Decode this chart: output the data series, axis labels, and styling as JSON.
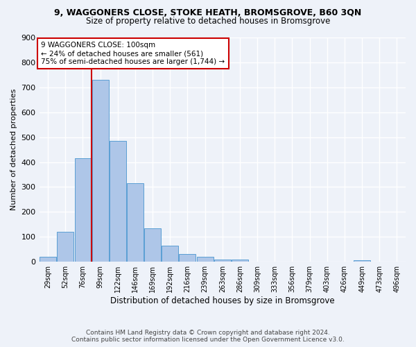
{
  "title_line1": "9, WAGGONERS CLOSE, STOKE HEATH, BROMSGROVE, B60 3QN",
  "title_line2": "Size of property relative to detached houses in Bromsgrove",
  "xlabel": "Distribution of detached houses by size in Bromsgrove",
  "ylabel": "Number of detached properties",
  "categories": [
    "29sqm",
    "52sqm",
    "76sqm",
    "99sqm",
    "122sqm",
    "146sqm",
    "169sqm",
    "192sqm",
    "216sqm",
    "239sqm",
    "263sqm",
    "286sqm",
    "309sqm",
    "333sqm",
    "356sqm",
    "379sqm",
    "403sqm",
    "426sqm",
    "449sqm",
    "473sqm",
    "496sqm"
  ],
  "values": [
    20,
    120,
    415,
    730,
    485,
    315,
    135,
    65,
    30,
    20,
    10,
    10,
    0,
    0,
    0,
    0,
    0,
    0,
    5,
    0,
    0
  ],
  "bar_color": "#aec6e8",
  "bar_edge_color": "#5a9fd4",
  "vline_bar_index": 3,
  "vline_color": "#cc0000",
  "annotation_text": "9 WAGGONERS CLOSE: 100sqm\n← 24% of detached houses are smaller (561)\n75% of semi-detached houses are larger (1,744) →",
  "annotation_box_color": "#ffffff",
  "annotation_box_edge": "#cc0000",
  "footnote1": "Contains HM Land Registry data © Crown copyright and database right 2024.",
  "footnote2": "Contains public sector information licensed under the Open Government Licence v3.0.",
  "background_color": "#eef2f9",
  "grid_color": "#ffffff",
  "ylim": [
    0,
    900
  ],
  "yticks": [
    0,
    100,
    200,
    300,
    400,
    500,
    600,
    700,
    800,
    900
  ]
}
